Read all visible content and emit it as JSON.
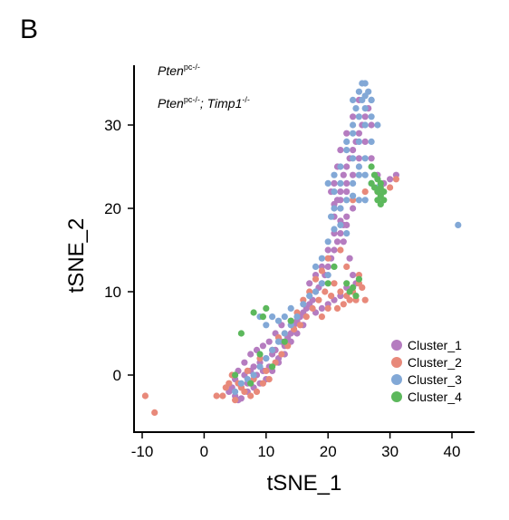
{
  "panel_label": "B",
  "chart_data": {
    "type": "scatter",
    "xlabel": "tSNE_1",
    "ylabel": "tSNE_2",
    "xlim": [
      -11,
      43
    ],
    "ylim": [
      -7,
      37
    ],
    "xticks": [
      -10,
      0,
      10,
      20,
      30,
      40
    ],
    "yticks": [
      0,
      10,
      20,
      30
    ],
    "grid": false,
    "legend_position": "bottom-right",
    "annotations": [
      {
        "main": "Pten",
        "sup": "pc-/-"
      },
      {
        "main": "Pten",
        "sup": "pc-/-",
        "rest_main": "; Timp1",
        "rest_sup": "-/-"
      }
    ],
    "series": [
      {
        "name": "Cluster_1",
        "color": "#b57cc0",
        "points": [
          [
            4,
            -2
          ],
          [
            5,
            -2.5
          ],
          [
            5.5,
            -3
          ],
          [
            6,
            -1.5
          ],
          [
            5,
            -0.5
          ],
          [
            6.5,
            0
          ],
          [
            7,
            -1
          ],
          [
            7.5,
            0.5
          ],
          [
            8,
            1
          ],
          [
            8.5,
            0
          ],
          [
            9,
            1.5
          ],
          [
            9.5,
            0.5
          ],
          [
            10,
            2
          ],
          [
            10.5,
            1
          ],
          [
            11,
            2.5
          ],
          [
            11.5,
            3
          ],
          [
            12,
            2
          ],
          [
            12.5,
            4
          ],
          [
            13,
            3.5
          ],
          [
            13.5,
            4.5
          ],
          [
            14,
            5
          ],
          [
            14.5,
            6
          ],
          [
            15,
            6.5
          ],
          [
            15.5,
            7
          ],
          [
            16,
            7.5
          ],
          [
            16.5,
            8
          ],
          [
            17,
            8.5
          ],
          [
            17.5,
            9
          ],
          [
            18,
            10
          ],
          [
            18.5,
            10.5
          ],
          [
            19,
            11
          ],
          [
            19.5,
            12
          ],
          [
            20,
            13
          ],
          [
            20.5,
            14
          ],
          [
            21,
            15
          ],
          [
            21.5,
            16
          ],
          [
            22,
            17
          ],
          [
            22.5,
            18
          ],
          [
            23,
            19
          ],
          [
            22,
            20
          ],
          [
            21.5,
            21
          ],
          [
            22,
            22
          ],
          [
            23,
            23
          ],
          [
            22.5,
            24
          ],
          [
            23,
            25
          ],
          [
            23.5,
            26
          ],
          [
            24,
            27
          ],
          [
            24.5,
            28
          ],
          [
            25,
            29
          ],
          [
            25.5,
            30
          ],
          [
            26,
            31
          ],
          [
            26.5,
            32
          ],
          [
            25,
            33
          ],
          [
            24,
            31
          ],
          [
            23,
            29
          ],
          [
            22,
            27
          ],
          [
            21.5,
            25
          ],
          [
            21,
            23
          ],
          [
            20.5,
            22
          ],
          [
            21,
            19
          ],
          [
            22.5,
            16
          ],
          [
            23.5,
            14
          ],
          [
            24,
            12
          ],
          [
            24.5,
            11
          ],
          [
            23,
            10.5
          ],
          [
            22,
            9.5
          ],
          [
            21,
            9
          ],
          [
            20,
            8.5
          ],
          [
            19,
            8
          ],
          [
            18,
            7.5
          ],
          [
            16,
            6
          ],
          [
            15,
            5
          ],
          [
            14,
            4
          ],
          [
            13,
            2.5
          ],
          [
            12,
            1.5
          ],
          [
            11,
            0.5
          ],
          [
            10,
            -0.5
          ],
          [
            9,
            -1
          ],
          [
            8,
            -1.5
          ],
          [
            7,
            -2
          ],
          [
            6,
            -2.8
          ],
          [
            4.5,
            -1.5
          ],
          [
            5.5,
            0.5
          ],
          [
            6.5,
            1.5
          ],
          [
            7.5,
            2.5
          ],
          [
            8.5,
            3
          ],
          [
            9.5,
            3.5
          ],
          [
            10.5,
            4
          ],
          [
            11.5,
            5
          ],
          [
            12.5,
            6
          ],
          [
            17,
            11
          ],
          [
            18,
            12
          ],
          [
            19,
            13
          ],
          [
            20,
            15
          ],
          [
            21,
            17
          ],
          [
            22,
            21
          ],
          [
            23,
            22
          ],
          [
            24,
            24
          ],
          [
            25,
            26
          ],
          [
            26,
            28
          ],
          [
            27,
            30
          ],
          [
            28,
            24
          ],
          [
            29,
            23
          ],
          [
            30,
            23.5
          ],
          [
            31,
            24
          ],
          [
            27,
            26
          ],
          [
            24,
            20
          ],
          [
            23,
            18
          ],
          [
            22,
            18.5
          ],
          [
            21,
            20.5
          ]
        ]
      },
      {
        "name": "Cluster_2",
        "color": "#e8897a",
        "points": [
          [
            -9.5,
            -2.5
          ],
          [
            -8,
            -4.5
          ],
          [
            2,
            -2.5
          ],
          [
            3,
            -2.5
          ],
          [
            4,
            -1
          ],
          [
            5,
            -3
          ],
          [
            6,
            -1.5
          ],
          [
            7,
            0.5
          ],
          [
            8,
            -0.5
          ],
          [
            9,
            2
          ],
          [
            10,
            0.5
          ],
          [
            11,
            3
          ],
          [
            12,
            4.5
          ],
          [
            13,
            5
          ],
          [
            14,
            6.5
          ],
          [
            15,
            7.5
          ],
          [
            16,
            9
          ],
          [
            17,
            10
          ],
          [
            18,
            11.5
          ],
          [
            19,
            12.5
          ],
          [
            20,
            14
          ],
          [
            21,
            11
          ],
          [
            22,
            10
          ],
          [
            23,
            9.5
          ],
          [
            24,
            10
          ],
          [
            25,
            11
          ],
          [
            25.5,
            10.5
          ],
          [
            24.5,
            9
          ],
          [
            23.5,
            9
          ],
          [
            22.5,
            8.5
          ],
          [
            21.5,
            8
          ],
          [
            20.5,
            9.5
          ],
          [
            19.5,
            10
          ],
          [
            18.5,
            9
          ],
          [
            17.5,
            8
          ],
          [
            16.5,
            7
          ],
          [
            15.5,
            6
          ],
          [
            14.5,
            5.5
          ],
          [
            13.5,
            3.5
          ],
          [
            12.5,
            2.5
          ],
          [
            11.5,
            1.5
          ],
          [
            10.5,
            -0.5
          ],
          [
            9.5,
            -1
          ],
          [
            8.5,
            -2
          ],
          [
            7.5,
            -2.5
          ],
          [
            6.5,
            -2
          ],
          [
            5.5,
            -1
          ],
          [
            4.5,
            0
          ],
          [
            3.5,
            -1.5
          ],
          [
            26,
            9
          ],
          [
            25,
            12
          ],
          [
            23,
            13
          ],
          [
            22,
            15
          ],
          [
            24,
            21
          ],
          [
            26,
            22
          ],
          [
            28,
            22
          ],
          [
            30,
            22.5
          ],
          [
            31,
            23.5
          ],
          [
            20,
            8
          ],
          [
            19,
            7
          ]
        ]
      },
      {
        "name": "Cluster_3",
        "color": "#82a8d6",
        "points": [
          [
            41,
            18
          ],
          [
            24,
            33
          ],
          [
            25,
            34
          ],
          [
            26,
            35
          ],
          [
            26.5,
            34
          ],
          [
            25.5,
            33
          ],
          [
            26,
            32
          ],
          [
            27,
            33
          ],
          [
            24.5,
            32
          ],
          [
            25,
            31
          ],
          [
            26,
            30
          ],
          [
            27,
            31
          ],
          [
            24,
            29
          ],
          [
            25,
            28
          ],
          [
            23,
            27
          ],
          [
            24,
            26
          ],
          [
            25,
            25
          ],
          [
            26,
            24
          ],
          [
            27,
            23
          ],
          [
            28,
            22.5
          ],
          [
            22,
            23
          ],
          [
            21,
            22
          ],
          [
            20,
            23
          ],
          [
            21,
            24
          ],
          [
            22,
            25
          ],
          [
            21,
            20
          ],
          [
            20.5,
            19
          ],
          [
            22,
            18
          ],
          [
            23,
            17
          ],
          [
            24,
            21.5
          ],
          [
            25,
            21
          ],
          [
            26,
            21
          ],
          [
            20,
            12
          ],
          [
            19,
            11
          ],
          [
            18,
            10
          ],
          [
            17,
            9.5
          ],
          [
            16,
            8.5
          ],
          [
            15,
            7
          ],
          [
            14,
            6
          ],
          [
            13,
            5
          ],
          [
            12,
            4
          ],
          [
            11,
            3
          ],
          [
            10,
            2
          ],
          [
            9,
            1
          ],
          [
            8,
            0
          ],
          [
            7,
            -0.5
          ],
          [
            6,
            -1
          ],
          [
            5,
            -2
          ],
          [
            9,
            7
          ],
          [
            10,
            6
          ],
          [
            11,
            7
          ],
          [
            12,
            6.5
          ],
          [
            13,
            7
          ],
          [
            14,
            8
          ],
          [
            18,
            13
          ],
          [
            19,
            14
          ],
          [
            20,
            16
          ],
          [
            21,
            17.5
          ],
          [
            22,
            20
          ],
          [
            23,
            21
          ],
          [
            24,
            23
          ],
          [
            25,
            24
          ],
          [
            26,
            26
          ],
          [
            27,
            28
          ],
          [
            28,
            30
          ],
          [
            27,
            33
          ],
          [
            25.5,
            35
          ],
          [
            26,
            33.5
          ],
          [
            24,
            30
          ],
          [
            23,
            28
          ]
        ]
      },
      {
        "name": "Cluster_4",
        "color": "#5cb85c",
        "points": [
          [
            10,
            8
          ],
          [
            9.5,
            7
          ],
          [
            8,
            7.5
          ],
          [
            6,
            5
          ],
          [
            5,
            0
          ],
          [
            7.5,
            -1
          ],
          [
            9,
            2.5
          ],
          [
            11,
            1
          ],
          [
            13,
            4
          ],
          [
            14,
            6.5
          ],
          [
            27,
            25
          ],
          [
            27.5,
            24
          ],
          [
            28,
            23.5
          ],
          [
            28.5,
            23
          ],
          [
            28,
            22
          ],
          [
            28.5,
            21.5
          ],
          [
            28,
            21
          ],
          [
            29,
            22
          ],
          [
            29,
            21
          ],
          [
            28.5,
            20.5
          ],
          [
            27.5,
            22.5
          ],
          [
            28.5,
            22.5
          ],
          [
            27,
            23
          ],
          [
            23,
            11
          ],
          [
            24,
            10.5
          ],
          [
            25,
            11.5
          ],
          [
            23.5,
            10
          ],
          [
            24.5,
            9.5
          ],
          [
            20,
            11
          ],
          [
            21,
            13
          ]
        ]
      }
    ]
  }
}
